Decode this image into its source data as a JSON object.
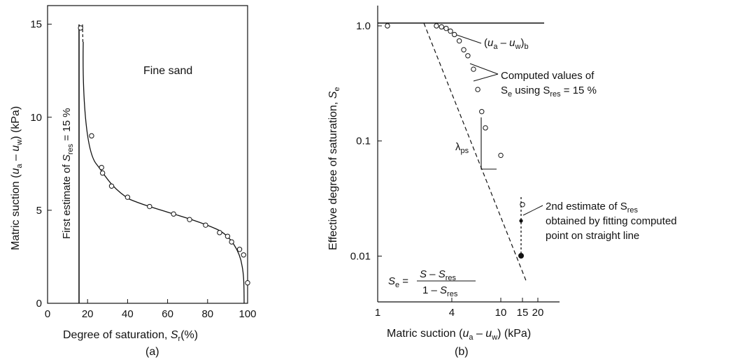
{
  "chart_data": [
    {
      "type": "line",
      "panel_label": "(a)",
      "xlabel": "Degree of saturation, S_r(%)",
      "ylabel": "Matric suction (u_a − u_w) (kPa)",
      "xlim": [
        0,
        100
      ],
      "ylim": [
        0,
        16
      ],
      "x_ticks": [
        "0",
        "20",
        "40",
        "60",
        "80",
        "100"
      ],
      "y_ticks": [
        "0",
        "5",
        "10",
        "15"
      ],
      "annotation": "Fine sand",
      "vertical_line_label": "First estimate of S_res = 15 %",
      "vertical_line_x": 15,
      "series": [
        {
          "x": [
            16.5,
            22,
            27,
            27.5,
            32,
            40,
            51,
            63,
            71,
            79,
            86,
            90,
            92,
            96,
            98,
            100
          ],
          "y": [
            14.8,
            9.0,
            7.3,
            7.0,
            6.3,
            5.7,
            5.2,
            4.8,
            4.5,
            4.2,
            3.8,
            3.6,
            3.3,
            2.9,
            2.6,
            1.1
          ]
        }
      ]
    },
    {
      "type": "scatter",
      "panel_label": "(b)",
      "xscale": "log",
      "yscale": "log",
      "xlabel": "Matric suction (u_a − u_w) (kPa)",
      "ylabel": "Effective degree of saturation, S_e",
      "xlim": [
        1,
        30
      ],
      "ylim": [
        0.004,
        1.5
      ],
      "x_ticks": [
        "1",
        "4",
        "10",
        "15",
        "20"
      ],
      "y_ticks": [
        "1.0",
        "0.1",
        "0.01"
      ],
      "annotations": {
        "bubbling": "(u_a − u_w)_b",
        "computed": [
          "Computed values of",
          "S_e using S_res = 15 %"
        ],
        "lambda": "λ_ps",
        "second": [
          "2nd estimate of S_res",
          "obtained by fitting computed",
          "point on straight line"
        ],
        "formula_lhs": "S_e =",
        "formula_num": "S − S_res",
        "formula_den": "1 − S_res"
      },
      "series": [
        {
          "x": [
            1.2,
            3.0,
            3.3,
            3.6,
            3.9,
            4.2,
            4.6,
            5.0,
            5.4,
            6.0,
            6.5,
            7.0,
            7.5,
            10.0,
            15.0
          ],
          "y": [
            1.0,
            1.0,
            0.98,
            0.95,
            0.9,
            0.84,
            0.74,
            0.62,
            0.55,
            0.42,
            0.28,
            0.18,
            0.13,
            0.075,
            0.028
          ]
        }
      ],
      "fitted_points": [
        {
          "x": 15.0,
          "y": 0.016
        },
        {
          "x": 15.0,
          "y": 0.008
        }
      ]
    }
  ]
}
